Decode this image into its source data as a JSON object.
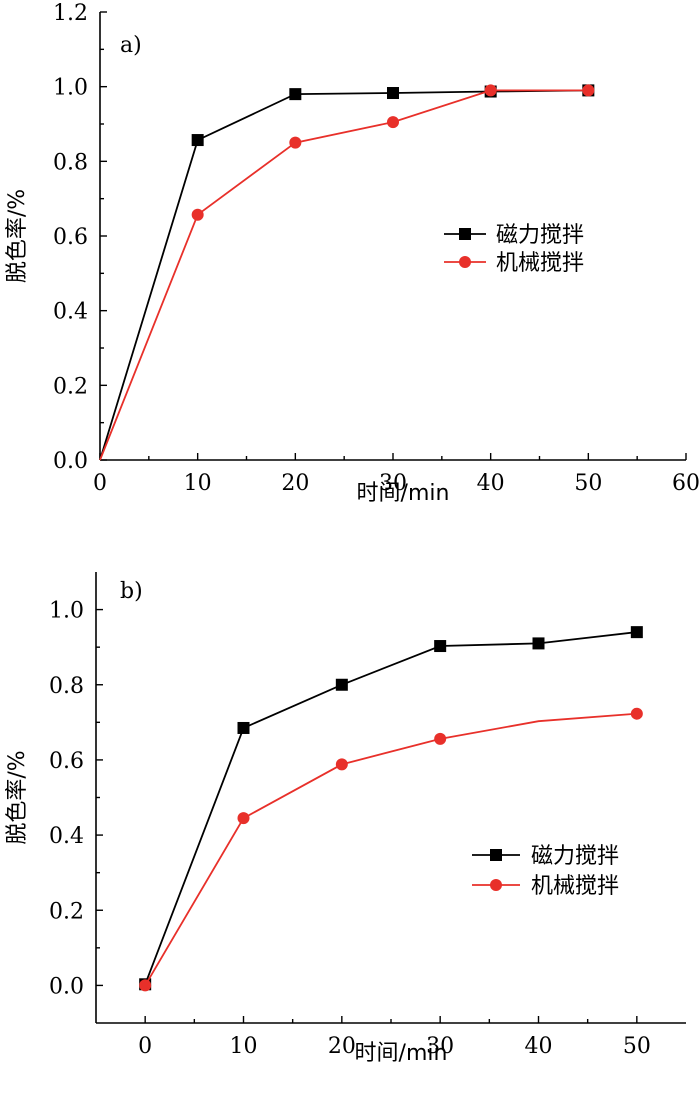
{
  "colors": {
    "magnetic": "#000000",
    "mechanical": "#e8302a"
  },
  "chart_data": [
    {
      "type": "line",
      "panel_label": "a)",
      "xlabel": "时间/min",
      "ylabel": "脱色率/%",
      "xlim": [
        0,
        60
      ],
      "ylim": [
        0,
        1.2
      ],
      "x_ticks": [
        "0",
        "10",
        "20",
        "30",
        "40",
        "50",
        "60"
      ],
      "y_ticks": [
        "0.0",
        "0.2",
        "0.4",
        "0.6",
        "0.8",
        "1.0",
        "1.2"
      ],
      "legend_position": "right-middle",
      "series": [
        {
          "name": "磁力搅拌",
          "marker": "square",
          "color": "#000000",
          "x": [
            0,
            10,
            20,
            30,
            40,
            50
          ],
          "y": [
            0.0,
            0.857,
            0.98,
            0.983,
            0.987,
            0.99
          ],
          "marked": [
            false,
            true,
            true,
            true,
            true,
            true
          ]
        },
        {
          "name": "机械搅拌",
          "marker": "circle",
          "color": "#e8302a",
          "x": [
            0,
            10,
            20,
            30,
            40,
            50
          ],
          "y": [
            0.0,
            0.657,
            0.85,
            0.905,
            0.99,
            0.99
          ],
          "marked": [
            false,
            true,
            true,
            true,
            true,
            true
          ]
        }
      ]
    },
    {
      "type": "line",
      "panel_label": "b)",
      "xlabel": "时间/min",
      "ylabel": "脱色率/%",
      "xlim": [
        -5,
        55
      ],
      "ylim": [
        -0.1,
        1.1
      ],
      "x_ticks": [
        "0",
        "10",
        "20",
        "30",
        "40",
        "50"
      ],
      "y_ticks": [
        "0.0",
        "0.2",
        "0.4",
        "0.6",
        "0.8",
        "1.0"
      ],
      "legend_position": "right-middle",
      "series": [
        {
          "name": "磁力搅拌",
          "marker": "square",
          "color": "#000000",
          "x": [
            0,
            10,
            20,
            30,
            40,
            50
          ],
          "y": [
            0.003,
            0.685,
            0.8,
            0.903,
            0.91,
            0.94
          ],
          "marked": [
            true,
            true,
            true,
            true,
            true,
            true
          ]
        },
        {
          "name": "机械搅拌",
          "marker": "circle",
          "color": "#e8302a",
          "x": [
            0,
            10,
            20,
            30,
            40,
            50
          ],
          "y": [
            0.0,
            0.445,
            0.588,
            0.656,
            0.703,
            0.723
          ],
          "marked": [
            true,
            true,
            true,
            true,
            false,
            true
          ]
        }
      ]
    }
  ]
}
